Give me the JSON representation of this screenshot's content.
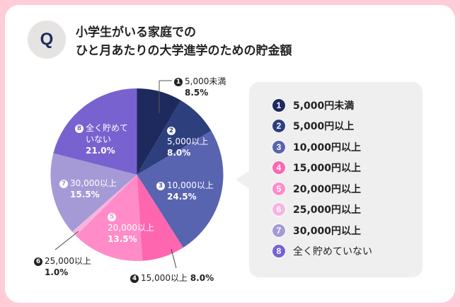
{
  "header": {
    "badge": "Q",
    "title_line1": "小学生がいる家庭での",
    "title_line2": "ひと月あたりの大学進学のための貯金額"
  },
  "chart_data": {
    "type": "pie",
    "title": "小学生がいる家庭での ひと月あたりの大学進学のための貯金額",
    "start": "12 o'clock",
    "direction": "clockwise",
    "unit": "%",
    "slices": [
      {
        "id": "1",
        "label": "5,000円未満",
        "chart_label": "5,000未満",
        "value": 8.5,
        "pct_text": "8.5%",
        "color": "#1e2a5e"
      },
      {
        "id": "2",
        "label": "5,000円以上",
        "chart_label": "5,000以上",
        "value": 8.0,
        "pct_text": "8.0%",
        "color": "#2e3f7e"
      },
      {
        "id": "3",
        "label": "10,000円以上",
        "chart_label": "10,000以上",
        "value": 24.5,
        "pct_text": "24.5%",
        "color": "#5864b0"
      },
      {
        "id": "4",
        "label": "15,000円以上",
        "chart_label": "15,000以上",
        "value": 8.0,
        "pct_text": "8.0%",
        "color": "#ff66b0"
      },
      {
        "id": "5",
        "label": "20,000円以上",
        "chart_label": "20,000以上",
        "value": 13.5,
        "pct_text": "13.5%",
        "color": "#ff8cc8"
      },
      {
        "id": "6",
        "label": "25,000円以上",
        "chart_label": "25,000以上",
        "value": 1.0,
        "pct_text": "1.0%",
        "color": "#f7b3df"
      },
      {
        "id": "7",
        "label": "30,000円以上",
        "chart_label": "30,000以上",
        "value": 15.5,
        "pct_text": "15.5%",
        "color": "#a59ad6"
      },
      {
        "id": "8",
        "label": "全く貯めていない",
        "chart_label": "全く貯めて いない",
        "value": 21.0,
        "pct_text": "21.0%",
        "color": "#7862cf"
      }
    ],
    "legend_position": "right"
  },
  "legend": {
    "items": [
      {
        "num": "1",
        "text": "5,000円未満"
      },
      {
        "num": "2",
        "text": "5,000円以上"
      },
      {
        "num": "3",
        "text": "10,000円以上"
      },
      {
        "num": "4",
        "text": "15,000円以上"
      },
      {
        "num": "5",
        "text": "20,000円以上"
      },
      {
        "num": "6",
        "text": "25,000円以上"
      },
      {
        "num": "7",
        "text": "30,000円以上"
      },
      {
        "num": "8",
        "text": "全く貯めていない"
      }
    ]
  },
  "labels": {
    "l1": {
      "num": "1",
      "name": "5,000未満",
      "pct": "8.5%"
    },
    "l2": {
      "num": "2",
      "name": "5,000以上",
      "pct": "8.0%"
    },
    "l3": {
      "num": "3",
      "name": "10,000以上",
      "pct": "24.5%"
    },
    "l4": {
      "num": "4",
      "name": "15,000以上",
      "pct": "8.0%"
    },
    "l5": {
      "num": "5",
      "name": "20,000以上",
      "pct": "13.5%"
    },
    "l6": {
      "num": "6",
      "name": "25,000以上",
      "pct": "1.0%"
    },
    "l7": {
      "num": "7",
      "name": "30,000以上",
      "pct": "15.5%"
    },
    "l8": {
      "num": "8",
      "name_line1": "全く貯めて",
      "name_line2": "いない",
      "pct": "21.0%"
    }
  }
}
